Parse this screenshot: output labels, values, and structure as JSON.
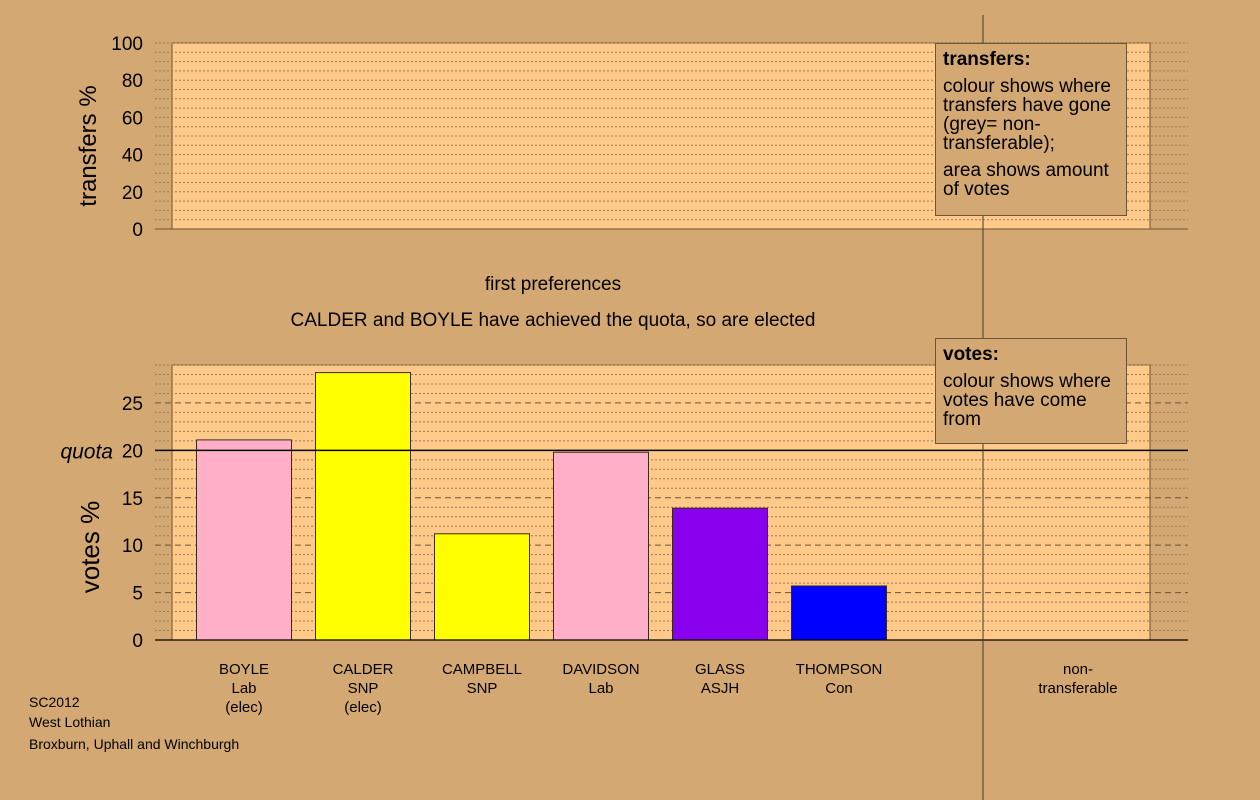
{
  "chart_data": [
    {
      "type": "bar",
      "panel": "transfers",
      "ylabel": "transfers %",
      "ylim": [
        0,
        100
      ],
      "yticks": [
        0,
        20,
        40,
        60,
        80,
        100
      ],
      "values": []
    },
    {
      "type": "bar",
      "panel": "votes",
      "ylabel": "votes %",
      "ylim": [
        0,
        29
      ],
      "yticks": [
        0,
        5,
        10,
        15,
        20,
        25
      ],
      "quota": 20,
      "quota_label": "quota",
      "categories": [
        [
          "BOYLE",
          "Lab",
          "(elec)"
        ],
        [
          "CALDER",
          "SNP",
          "(elec)"
        ],
        [
          "CAMPBELL",
          "SNP"
        ],
        [
          "DAVIDSON",
          "Lab"
        ],
        [
          "GLASS",
          "ASJH"
        ],
        [
          "THOMPSON",
          "Con"
        ]
      ],
      "values": [
        21.1,
        28.2,
        11.2,
        19.8,
        13.9,
        5.7
      ],
      "colors": [
        "#ffb0c8",
        "#ffff00",
        "#ffff00",
        "#ffb0c8",
        "#8800ee",
        "#0000ff"
      ],
      "nontransferable_label": [
        "non-",
        "transferable"
      ],
      "nontransferable_value": 0
    }
  ],
  "stage_title": "first preferences",
  "stage_subtitle": "CALDER and BOYLE have achieved the quota, so are elected",
  "legend_transfers": {
    "title": "transfers:",
    "line1": "colour shows where transfers have gone (grey= non-transferable);",
    "line2": "area shows amount of votes"
  },
  "legend_votes": {
    "title": "votes:",
    "line1": "colour shows where votes have come from"
  },
  "footer": {
    "line1": "SC2012",
    "line2": "West Lothian",
    "line3": "Broxburn, Uphall and Winchburgh"
  },
  "colors": {
    "background": "#d4a872",
    "panel": "#ffc98a"
  }
}
